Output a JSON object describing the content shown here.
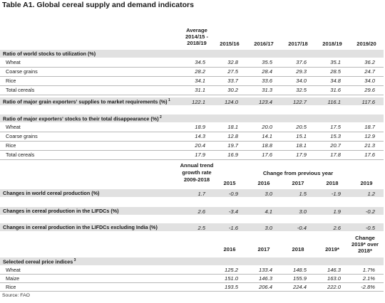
{
  "title": "Table A1. Global cereal supply and demand indicators",
  "header1": {
    "avg": [
      "Average",
      "2014/15 -",
      "2018/19"
    ],
    "years": [
      "2015/16",
      "2016/17",
      "2017/18",
      "2018/19",
      "2019/20"
    ]
  },
  "sections": {
    "ratio_stocks": {
      "label": "Ratio of world stocks to utilization (%)",
      "rows": [
        {
          "name": "Wheat",
          "vals": [
            "34.5",
            "32.8",
            "35.5",
            "37.6",
            "35.1",
            "36.2"
          ]
        },
        {
          "name": "Coarse grains",
          "vals": [
            "28.2",
            "27.5",
            "28.4",
            "29.3",
            "28.5",
            "24.7"
          ]
        },
        {
          "name": "Rice",
          "vals": [
            "34.1",
            "33.7",
            "33.6",
            "34.0",
            "34.8",
            "34.0"
          ]
        },
        {
          "name": "Total cereals",
          "vals": [
            "31.1",
            "30.2",
            "31.3",
            "32.5",
            "31.6",
            "29.6"
          ]
        }
      ]
    },
    "ratio_exporters": {
      "label": "Ratio of major grain exporters' supplies to market requirements (%)",
      "sup": "1",
      "vals": [
        "122.1",
        "124.0",
        "123.4",
        "122.7",
        "116.1",
        "117.6"
      ]
    },
    "ratio_disappearance": {
      "label": "Ratio of major exporters' stocks to their total disappearance (%)",
      "sup": "2",
      "rows": [
        {
          "name": "Wheat",
          "vals": [
            "18.9",
            "18.1",
            "20.0",
            "20.5",
            "17.5",
            "18.7"
          ]
        },
        {
          "name": "Coarse grains",
          "vals": [
            "14.3",
            "12.8",
            "14.1",
            "15.1",
            "15.3",
            "12.9"
          ]
        },
        {
          "name": "Rice",
          "vals": [
            "20.4",
            "19.7",
            "18.8",
            "18.1",
            "20.7",
            "21.3"
          ]
        },
        {
          "name": "Total cereals",
          "vals": [
            "17.9",
            "16.9",
            "17.6",
            "17.9",
            "17.8",
            "17.6"
          ]
        }
      ]
    }
  },
  "header2": {
    "trend": [
      "Annual trend",
      "growth rate",
      "2009-2018"
    ],
    "change": "Change from previous year",
    "years": [
      "2015",
      "2016",
      "2017",
      "2018",
      "2019"
    ]
  },
  "production": [
    {
      "label": "Changes in world cereal production (%)",
      "vals": [
        "1.7",
        "-0.9",
        "3.0",
        "1.5",
        "-1.9",
        "1.2"
      ]
    },
    {
      "label": "Changes in cereal production in the LIFDCs (%)",
      "vals": [
        "2.6",
        "-3.4",
        "4.1",
        "3.0",
        "1.9",
        "-0.2"
      ]
    },
    {
      "label": "Changes in cereal production in the LIFDCs excluding India (%)",
      "vals": [
        "2.5",
        "-1.6",
        "3.0",
        "-0.4",
        "2.6",
        "-0.5"
      ]
    }
  ],
  "header3": {
    "years": [
      "2016",
      "2017",
      "2018",
      "2019*"
    ],
    "change": [
      "Change",
      "2019* over",
      "2018*"
    ]
  },
  "prices": {
    "label": "Selected cereal price indices",
    "sup": "3",
    "rows": [
      {
        "name": "Wheat",
        "vals": [
          "125.2",
          "133.4",
          "148.5",
          "146.3",
          "1.7%"
        ]
      },
      {
        "name": "Maize",
        "vals": [
          "151.0",
          "146.3",
          "155.9",
          "163.0",
          "2.1%"
        ]
      },
      {
        "name": "Rice",
        "vals": [
          "193.5",
          "206.4",
          "224.4",
          "222.0",
          "-2.8%"
        ]
      }
    ]
  },
  "source": "Source: FAO"
}
